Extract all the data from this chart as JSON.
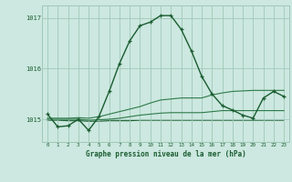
{
  "title": "Graphe pression niveau de la mer (hPa)",
  "background_color": "#cce8e0",
  "grid_color": "#a0c8b8",
  "line_color_dark": "#1a5c30",
  "line_color_med": "#2d7a48",
  "xlim": [
    -0.5,
    23.5
  ],
  "ylim": [
    1014.55,
    1017.25
  ],
  "yticks": [
    1015,
    1016,
    1017
  ],
  "xticks": [
    0,
    1,
    2,
    3,
    4,
    5,
    6,
    7,
    8,
    9,
    10,
    11,
    12,
    13,
    14,
    15,
    16,
    17,
    18,
    19,
    20,
    21,
    22,
    23
  ],
  "hours": [
    0,
    1,
    2,
    3,
    4,
    5,
    6,
    7,
    8,
    9,
    10,
    11,
    12,
    13,
    14,
    15,
    16,
    17,
    18,
    19,
    20,
    21,
    22,
    23
  ],
  "pressure_main": [
    1015.1,
    1014.85,
    1014.87,
    1015.0,
    1014.78,
    1015.05,
    1015.55,
    1016.1,
    1016.55,
    1016.85,
    1016.92,
    1017.05,
    1017.05,
    1016.78,
    1016.35,
    1015.85,
    1015.5,
    1015.27,
    1015.18,
    1015.08,
    1015.02,
    1015.42,
    1015.55,
    1015.45
  ],
  "pressure_line2": [
    1015.02,
    1015.02,
    1015.02,
    1015.03,
    1015.02,
    1015.05,
    1015.1,
    1015.15,
    1015.2,
    1015.25,
    1015.32,
    1015.38,
    1015.4,
    1015.42,
    1015.42,
    1015.42,
    1015.48,
    1015.52,
    1015.55,
    1015.56,
    1015.57,
    1015.57,
    1015.57,
    1015.57
  ],
  "pressure_line3": [
    1015.0,
    1015.0,
    1015.0,
    1015.0,
    1014.98,
    1014.99,
    1015.0,
    1015.02,
    1015.05,
    1015.08,
    1015.1,
    1015.12,
    1015.13,
    1015.13,
    1015.13,
    1015.13,
    1015.15,
    1015.17,
    1015.17,
    1015.17,
    1015.17,
    1015.17,
    1015.17,
    1015.17
  ],
  "pressure_line4": [
    1014.98,
    1014.98,
    1014.97,
    1014.97,
    1014.96,
    1014.96,
    1014.97,
    1014.97,
    1014.97,
    1014.98,
    1014.98,
    1014.98,
    1014.98,
    1014.98,
    1014.98,
    1014.98,
    1014.98,
    1014.98,
    1014.98,
    1014.98,
    1014.98,
    1014.98,
    1014.98,
    1014.98
  ]
}
